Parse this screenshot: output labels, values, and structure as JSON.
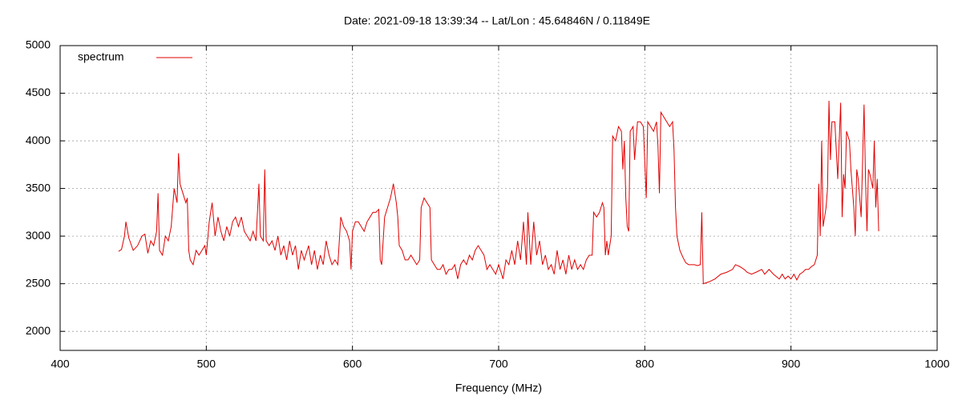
{
  "chart_data": {
    "type": "line",
    "title": "Date: 2021-09-18 13:39:34  --  Lat/Lon : 45.64846N / 0.11849E",
    "x_label": "Frequency (MHz)",
    "xlim": [
      400,
      1000
    ],
    "xticks": [
      400,
      500,
      600,
      700,
      800,
      900,
      1000
    ],
    "ylim": [
      1800,
      5000
    ],
    "yticks": [
      2000,
      2500,
      3000,
      3500,
      4000,
      4500,
      5000
    ],
    "grid": true,
    "legend_position": "top left",
    "x": [
      440,
      442,
      444,
      445,
      447,
      450,
      453,
      456,
      458,
      460,
      462,
      464,
      466,
      467,
      468,
      470,
      472,
      474,
      476,
      477,
      478,
      480,
      481,
      482,
      484,
      486,
      487,
      488,
      489,
      491,
      493,
      495,
      497,
      499,
      500,
      502,
      503,
      504,
      506,
      508,
      510,
      512,
      514,
      516,
      518,
      520,
      522,
      524,
      526,
      528,
      530,
      532,
      534,
      536,
      537,
      539,
      540,
      541,
      543,
      545,
      547,
      549,
      551,
      553,
      555,
      557,
      559,
      561,
      563,
      565,
      567,
      570,
      572,
      574,
      576,
      578,
      580,
      582,
      584,
      586,
      588,
      590,
      591,
      592,
      594,
      596,
      598,
      599,
      600,
      602,
      604,
      606,
      608,
      610,
      612,
      614,
      616,
      618,
      619,
      620,
      622,
      624,
      626,
      628,
      630,
      631,
      632,
      634,
      636,
      638,
      640,
      642,
      644,
      646,
      647,
      649,
      651,
      653,
      654,
      656,
      658,
      660,
      662,
      664,
      666,
      668,
      670,
      672,
      674,
      676,
      678,
      680,
      682,
      684,
      686,
      688,
      690,
      692,
      694,
      696,
      698,
      700,
      702,
      703,
      705,
      707,
      709,
      711,
      713,
      715,
      717,
      719,
      720,
      722,
      724,
      726,
      728,
      730,
      732,
      734,
      736,
      738,
      740,
      742,
      744,
      746,
      748,
      750,
      752,
      754,
      756,
      758,
      760,
      762,
      764,
      765,
      767,
      769,
      771,
      772,
      773,
      774,
      775,
      776,
      777,
      778,
      780,
      782,
      784,
      785,
      786,
      787,
      788,
      789,
      790,
      792,
      793,
      795,
      797,
      799,
      801,
      802,
      804,
      806,
      808,
      809,
      810,
      811,
      813,
      815,
      817,
      819,
      820,
      821,
      822,
      824,
      826,
      828,
      830,
      832,
      834,
      836,
      838,
      839,
      840,
      844,
      848,
      852,
      856,
      860,
      862,
      865,
      868,
      870,
      873,
      876,
      880,
      882,
      885,
      888,
      892,
      894,
      896,
      898,
      900,
      902,
      904,
      906,
      908,
      910,
      912,
      914,
      916,
      918,
      919,
      920,
      921,
      922,
      923,
      924,
      925,
      926,
      927,
      928,
      930,
      932,
      934,
      935,
      936,
      937,
      938,
      940,
      941,
      942,
      943,
      944,
      945,
      946,
      948,
      950,
      951,
      952,
      953,
      954,
      956,
      957,
      958,
      959,
      960
    ],
    "series": [
      {
        "name": "spectrum",
        "color": "#e00000",
        "values": [
          2840,
          2860,
          3000,
          3150,
          2980,
          2850,
          2900,
          3000,
          3020,
          2820,
          2950,
          2900,
          3050,
          3450,
          2850,
          2800,
          3000,
          2950,
          3100,
          3300,
          3500,
          3350,
          3870,
          3550,
          3450,
          3350,
          3400,
          2850,
          2750,
          2700,
          2850,
          2800,
          2850,
          2900,
          2800,
          3150,
          3250,
          3350,
          3000,
          3200,
          3050,
          2950,
          3100,
          3000,
          3150,
          3200,
          3100,
          3200,
          3050,
          3000,
          2950,
          3050,
          2950,
          3550,
          3000,
          2950,
          3700,
          2950,
          2900,
          2950,
          2850,
          3000,
          2800,
          2900,
          2750,
          2950,
          2800,
          2900,
          2650,
          2850,
          2750,
          2900,
          2700,
          2850,
          2650,
          2800,
          2700,
          2950,
          2800,
          2700,
          2750,
          2700,
          2950,
          3200,
          3100,
          3050,
          2950,
          2650,
          3050,
          3150,
          3150,
          3100,
          3050,
          3150,
          3200,
          3250,
          3250,
          3280,
          2750,
          2700,
          3200,
          3300,
          3400,
          3550,
          3350,
          3200,
          2900,
          2850,
          2750,
          2750,
          2800,
          2750,
          2700,
          2750,
          3300,
          3400,
          3350,
          3300,
          2750,
          2700,
          2650,
          2650,
          2700,
          2600,
          2650,
          2650,
          2700,
          2550,
          2700,
          2750,
          2700,
          2800,
          2750,
          2850,
          2900,
          2850,
          2800,
          2650,
          2700,
          2650,
          2600,
          2700,
          2600,
          2550,
          2750,
          2700,
          2850,
          2700,
          2950,
          2750,
          3150,
          2700,
          3250,
          2700,
          3150,
          2800,
          2950,
          2700,
          2800,
          2650,
          2700,
          2600,
          2850,
          2650,
          2750,
          2600,
          2800,
          2650,
          2750,
          2650,
          2700,
          2650,
          2750,
          2800,
          2800,
          3250,
          3200,
          3250,
          3350,
          3300,
          2800,
          2950,
          2800,
          2900,
          3000,
          4050,
          4000,
          4150,
          4100,
          3700,
          4000,
          3400,
          3100,
          3050,
          4100,
          4150,
          3800,
          4200,
          4200,
          4150,
          3400,
          4200,
          4150,
          4100,
          4200,
          3950,
          3450,
          4300,
          4250,
          4200,
          4150,
          4200,
          3900,
          3300,
          3000,
          2850,
          2780,
          2720,
          2700,
          2700,
          2700,
          2690,
          2700,
          3250,
          2500,
          2520,
          2550,
          2600,
          2620,
          2650,
          2700,
          2680,
          2650,
          2620,
          2600,
          2620,
          2650,
          2600,
          2650,
          2600,
          2550,
          2600,
          2550,
          2580,
          2550,
          2600,
          2540,
          2600,
          2620,
          2650,
          2650,
          2680,
          2700,
          2800,
          3550,
          3000,
          4000,
          3100,
          3200,
          3300,
          3500,
          4420,
          3800,
          4200,
          4200,
          3600,
          4400,
          3200,
          3650,
          3500,
          4100,
          4000,
          3700,
          3500,
          3300,
          3000,
          3700,
          3600,
          3200,
          4380,
          3600,
          3050,
          3700,
          3650,
          3500,
          4000,
          3300,
          3600,
          3050
        ]
      }
    ]
  }
}
